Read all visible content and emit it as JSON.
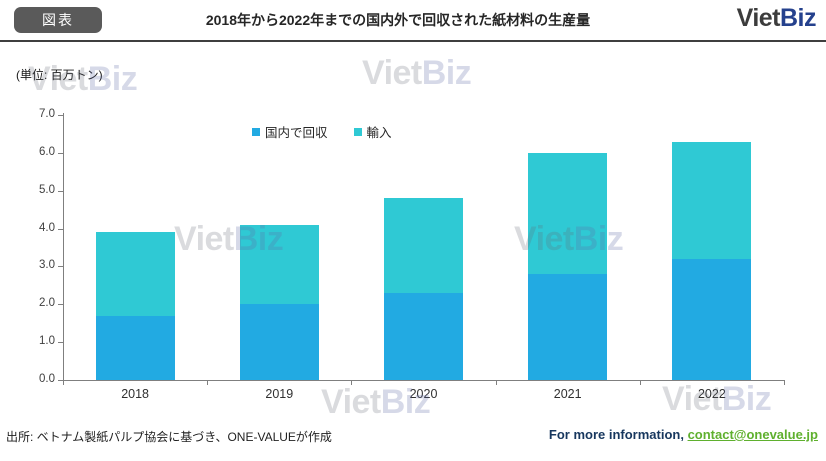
{
  "header": {
    "badge": "図表",
    "title": "2018年から2022年までの国内外で回収された紙材料の生産量",
    "logo": {
      "part1": "Viet",
      "part2": "Biz",
      "part1_color": "#3c3c3c",
      "part2_color": "#25418d"
    }
  },
  "watermark": {
    "part1": "Viet",
    "part2": "Biz"
  },
  "chart_data": {
    "type": "bar",
    "stacked": true,
    "title": "2018年から2022年までの国内外で回収された紙材料の生産量",
    "unit_label": "(単位: 百万トン)",
    "categories": [
      "2018",
      "2019",
      "2020",
      "2021",
      "2022"
    ],
    "series": [
      {
        "name": "国内で回収",
        "color": "#22aae2",
        "values": [
          1.7,
          2.0,
          2.3,
          2.8,
          3.2
        ]
      },
      {
        "name": "輸入",
        "color": "#2fc9d4",
        "values": [
          2.2,
          2.1,
          2.5,
          3.2,
          3.1
        ]
      }
    ],
    "totals": [
      3.9,
      4.1,
      4.8,
      6.0,
      6.3
    ],
    "ylim": [
      0.0,
      7.0
    ],
    "ytick_step": 1.0,
    "ytick_labels": [
      "0.0",
      "1.0",
      "2.0",
      "3.0",
      "4.0",
      "5.0",
      "6.0",
      "7.0"
    ],
    "xlabel": "",
    "ylabel": "百万トン",
    "grid": false,
    "legend_position": "top-center",
    "axis_color": "#7f7f7f"
  },
  "footer": {
    "source": "出所: ベトナム製紙パルプ協会に基づき、ONE-VALUEが作成",
    "info_label": "For more information, ",
    "contact_link": "contact@onevalue.jp",
    "link_color": "#5fb02e"
  }
}
